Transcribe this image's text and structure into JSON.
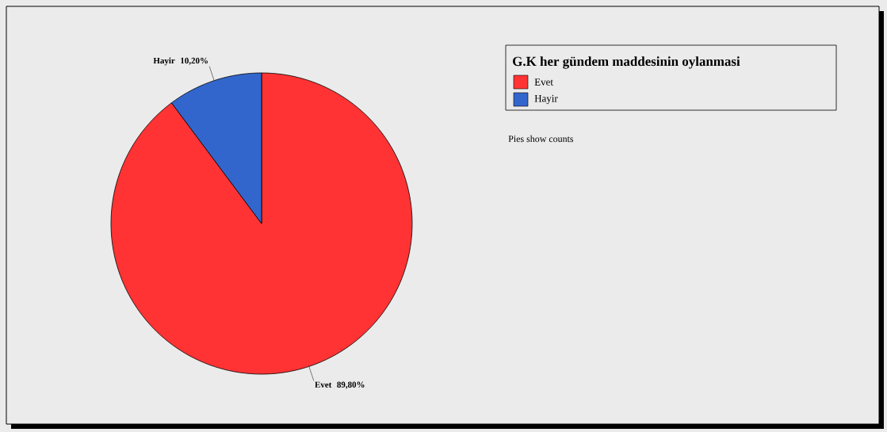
{
  "chart_data": {
    "type": "pie",
    "legend_title": "G.K her gündem maddesinin oylanmasi",
    "legend": "top right",
    "categories": [
      "Evet",
      "Hayir"
    ],
    "values": [
      89.8,
      10.2
    ],
    "colors": [
      "#ff3333",
      "#3366cc"
    ],
    "value_labels": [
      "89,80%",
      "10,20%"
    ],
    "annotations": [
      "Pies show counts"
    ]
  }
}
